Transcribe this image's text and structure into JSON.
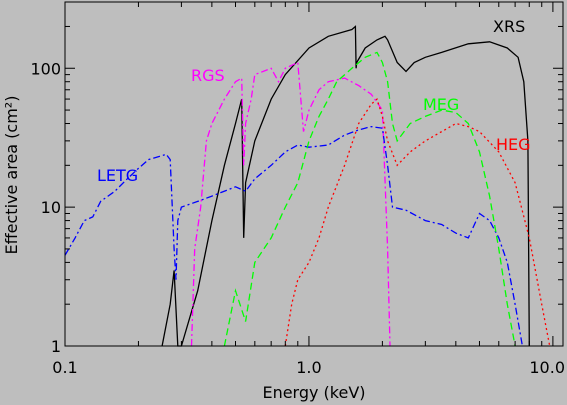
{
  "chart_data": {
    "type": "line",
    "xlabel": "Energy (keV)",
    "ylabel": "Effective area (cm²)",
    "xscale": "log",
    "yscale": "log",
    "xlim": [
      0.1,
      11
    ],
    "ylim": [
      1,
      300
    ],
    "xticks": [
      {
        "value": 0.1,
        "label": "0.1"
      },
      {
        "value": 1.0,
        "label": "1.0"
      },
      {
        "value": 10.0,
        "label": "10.0"
      }
    ],
    "yticks": [
      {
        "value": 1,
        "label": "1"
      },
      {
        "value": 10,
        "label": "10"
      },
      {
        "value": 100,
        "label": "100"
      }
    ],
    "series": [
      {
        "name": "XRS",
        "color": "#000000",
        "dash": "solid",
        "points": [
          [
            0.25,
            1
          ],
          [
            0.27,
            2
          ],
          [
            0.28,
            3.5
          ],
          [
            0.29,
            1
          ],
          [
            0.3,
            1
          ],
          [
            0.35,
            2.5
          ],
          [
            0.4,
            8
          ],
          [
            0.45,
            20
          ],
          [
            0.5,
            40
          ],
          [
            0.53,
            60
          ],
          [
            0.54,
            6
          ],
          [
            0.55,
            15
          ],
          [
            0.6,
            30
          ],
          [
            0.7,
            60
          ],
          [
            0.8,
            90
          ],
          [
            1.0,
            140
          ],
          [
            1.2,
            170
          ],
          [
            1.5,
            190
          ],
          [
            1.55,
            200
          ],
          [
            1.56,
            100
          ],
          [
            1.57,
            110
          ],
          [
            1.7,
            140
          ],
          [
            1.9,
            160
          ],
          [
            2.05,
            170
          ],
          [
            2.1,
            160
          ],
          [
            2.3,
            110
          ],
          [
            2.5,
            95
          ],
          [
            2.7,
            110
          ],
          [
            3.0,
            120
          ],
          [
            3.5,
            130
          ],
          [
            4.5,
            150
          ],
          [
            5.5,
            155
          ],
          [
            6.5,
            140
          ],
          [
            7.2,
            120
          ],
          [
            7.6,
            80
          ],
          [
            7.9,
            30
          ],
          [
            8.0,
            1
          ]
        ]
      },
      {
        "name": "RGS",
        "color": "#ff00ff",
        "dash": "dashdot",
        "points": [
          [
            0.33,
            1
          ],
          [
            0.34,
            5
          ],
          [
            0.36,
            10
          ],
          [
            0.38,
            30
          ],
          [
            0.4,
            40
          ],
          [
            0.45,
            60
          ],
          [
            0.5,
            80
          ],
          [
            0.53,
            85
          ],
          [
            0.54,
            20
          ],
          [
            0.55,
            40
          ],
          [
            0.58,
            60
          ],
          [
            0.6,
            90
          ],
          [
            0.65,
            95
          ],
          [
            0.7,
            100
          ],
          [
            0.75,
            80
          ],
          [
            0.8,
            100
          ],
          [
            0.85,
            105
          ],
          [
            0.9,
            110
          ],
          [
            0.95,
            35
          ],
          [
            1.0,
            50
          ],
          [
            1.1,
            70
          ],
          [
            1.2,
            80
          ],
          [
            1.4,
            85
          ],
          [
            1.6,
            75
          ],
          [
            1.8,
            65
          ],
          [
            2.0,
            50
          ],
          [
            2.1,
            5
          ],
          [
            2.15,
            1
          ]
        ]
      },
      {
        "name": "LETG",
        "color": "#0000ff",
        "dash": "dashdot",
        "points": [
          [
            0.1,
            4.5
          ],
          [
            0.11,
            6
          ],
          [
            0.12,
            8
          ],
          [
            0.13,
            8.5
          ],
          [
            0.14,
            11
          ],
          [
            0.16,
            13
          ],
          [
            0.18,
            16
          ],
          [
            0.2,
            19
          ],
          [
            0.22,
            22
          ],
          [
            0.24,
            23
          ],
          [
            0.26,
            24
          ],
          [
            0.27,
            22
          ],
          [
            0.28,
            5
          ],
          [
            0.285,
            3
          ],
          [
            0.29,
            8
          ],
          [
            0.3,
            10
          ],
          [
            0.35,
            11
          ],
          [
            0.4,
            12
          ],
          [
            0.5,
            14
          ],
          [
            0.55,
            13
          ],
          [
            0.6,
            16
          ],
          [
            0.7,
            20
          ],
          [
            0.8,
            25
          ],
          [
            0.9,
            28
          ],
          [
            1.0,
            27
          ],
          [
            1.2,
            28
          ],
          [
            1.4,
            33
          ],
          [
            1.6,
            36
          ],
          [
            1.8,
            38
          ],
          [
            2.0,
            37
          ],
          [
            2.1,
            20
          ],
          [
            2.2,
            10
          ],
          [
            2.5,
            9.5
          ],
          [
            3.0,
            8
          ],
          [
            3.5,
            7.5
          ],
          [
            4.0,
            6.5
          ],
          [
            4.5,
            6
          ],
          [
            5.0,
            9
          ],
          [
            5.5,
            8
          ],
          [
            6.0,
            6
          ],
          [
            6.5,
            4
          ],
          [
            7.0,
            2
          ],
          [
            7.5,
            1
          ]
        ]
      },
      {
        "name": "MEG",
        "color": "#00ff00",
        "dash": "dashed",
        "points": [
          [
            0.45,
            1
          ],
          [
            0.5,
            2.5
          ],
          [
            0.55,
            1.5
          ],
          [
            0.6,
            4
          ],
          [
            0.7,
            6
          ],
          [
            0.8,
            10
          ],
          [
            0.9,
            15
          ],
          [
            1.0,
            30
          ],
          [
            1.1,
            45
          ],
          [
            1.2,
            60
          ],
          [
            1.3,
            80
          ],
          [
            1.5,
            100
          ],
          [
            1.7,
            120
          ],
          [
            1.9,
            130
          ],
          [
            2.0,
            110
          ],
          [
            2.1,
            80
          ],
          [
            2.2,
            40
          ],
          [
            2.3,
            30
          ],
          [
            2.6,
            40
          ],
          [
            3.0,
            45
          ],
          [
            3.5,
            50
          ],
          [
            4.0,
            48
          ],
          [
            4.5,
            40
          ],
          [
            5.0,
            25
          ],
          [
            5.5,
            12
          ],
          [
            6.0,
            5
          ],
          [
            6.5,
            2
          ],
          [
            7.0,
            1
          ]
        ]
      },
      {
        "name": "HEG",
        "color": "#ff0000",
        "dash": "dotted",
        "points": [
          [
            0.8,
            1
          ],
          [
            0.85,
            2
          ],
          [
            0.9,
            3
          ],
          [
            1.0,
            4
          ],
          [
            1.1,
            6
          ],
          [
            1.2,
            10
          ],
          [
            1.4,
            20
          ],
          [
            1.6,
            40
          ],
          [
            1.8,
            55
          ],
          [
            1.9,
            60
          ],
          [
            2.0,
            45
          ],
          [
            2.1,
            30
          ],
          [
            2.3,
            20
          ],
          [
            2.6,
            25
          ],
          [
            3.0,
            30
          ],
          [
            3.5,
            35
          ],
          [
            4.0,
            40
          ],
          [
            4.5,
            38
          ],
          [
            5.0,
            35
          ],
          [
            6.0,
            25
          ],
          [
            7.0,
            15
          ],
          [
            8.0,
            6
          ],
          [
            9.0,
            2
          ],
          [
            9.7,
            1
          ]
        ]
      }
    ],
    "annotations": [
      {
        "text": "XRS",
        "color": "#000000"
      },
      {
        "text": "RGS",
        "color": "#ff00ff"
      },
      {
        "text": "LETG",
        "color": "#0000ff"
      },
      {
        "text": "MEG",
        "color": "#00ff00"
      },
      {
        "text": "HEG",
        "color": "#ff0000"
      }
    ]
  }
}
